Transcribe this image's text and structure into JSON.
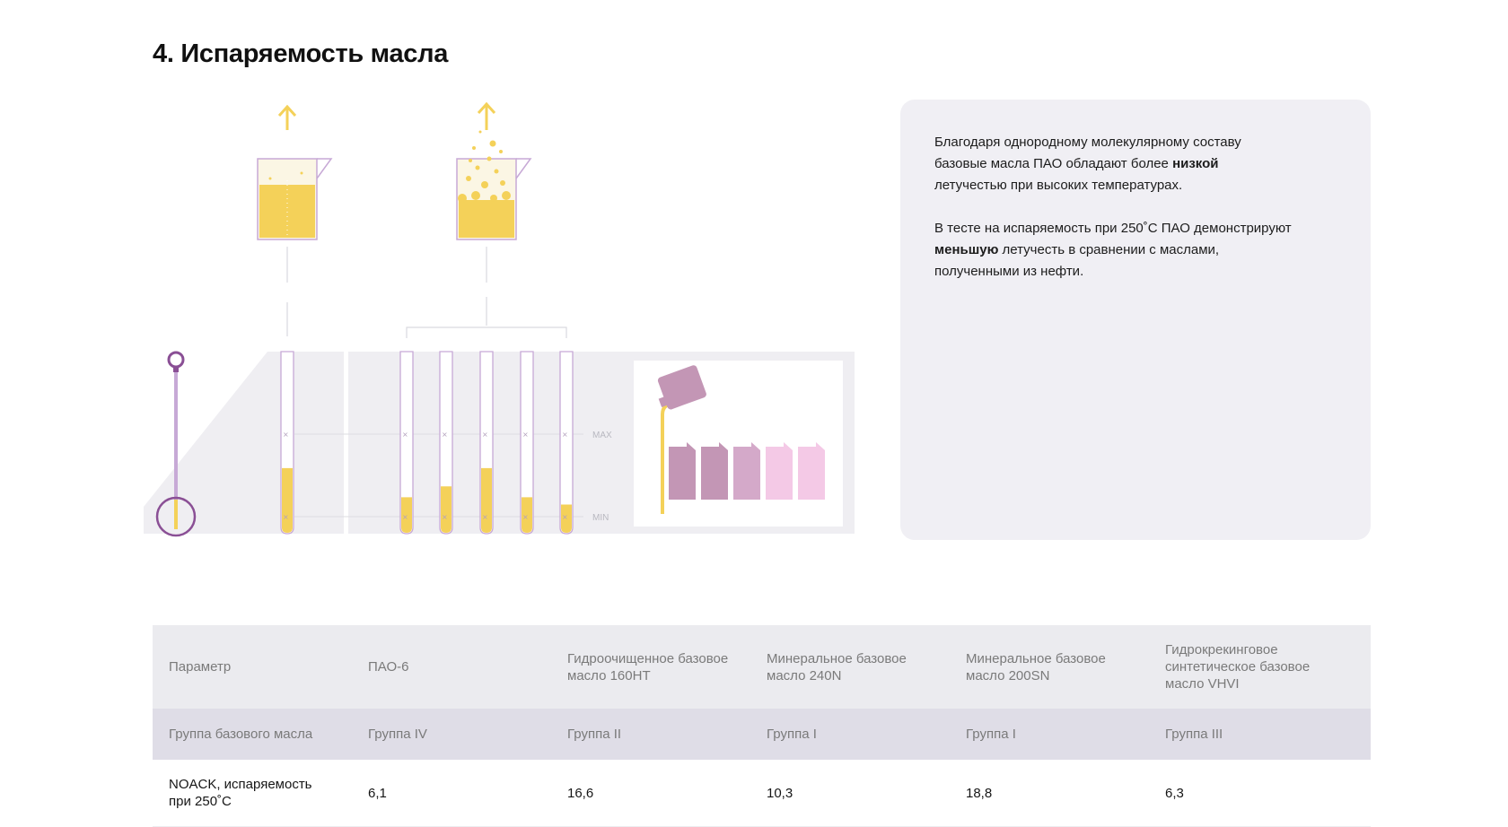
{
  "section": {
    "title": "4. Испаряемость масла"
  },
  "illustration": {
    "max_label": "MAX",
    "min_label": "MIN",
    "colors": {
      "oil": "#f4d159",
      "outline": "#c7a9d6",
      "dipstick": "#8a4f95",
      "panel": "#efeef2",
      "canister_1": "#c396b5",
      "canister_2": "#d4a9c9",
      "canister_3": "#f4c9e6"
    },
    "dipstick_levels": [
      0.36,
      0.2,
      0.26,
      0.36,
      0.2,
      0.16
    ]
  },
  "info": {
    "p1_text_a": "Благодаря однородному молекулярному составу базовые масла ПАО обладают более ",
    "p1_bold": "низкой",
    "p1_text_b": " летучестью при высоких температурах.",
    "p2_text_a": "В тесте на испаряемость при 250˚С ПАО демонстрируют ",
    "p2_bold": "меньшую",
    "p2_text_b": " летучесть в сравнении с маслами, полученными из нефти."
  },
  "table": {
    "headers": [
      "Параметр",
      "ПАО-6",
      "Гидроочищенное базовое масло 160НТ",
      "Минеральное базовое масло 240N",
      "Минеральное базовое масло 200SN",
      "Гидрокрекинговое синтетическое базовое масло VHVI"
    ],
    "group_row": [
      "Группа базового масла",
      "Группа IV",
      "Группа II",
      "Группа I",
      "Группа I",
      "Группа III"
    ],
    "noack_row": [
      "NOACK, испаряемость при 250˚С",
      "6,1",
      "16,6",
      "10,3",
      "18,8",
      "6,3"
    ]
  }
}
